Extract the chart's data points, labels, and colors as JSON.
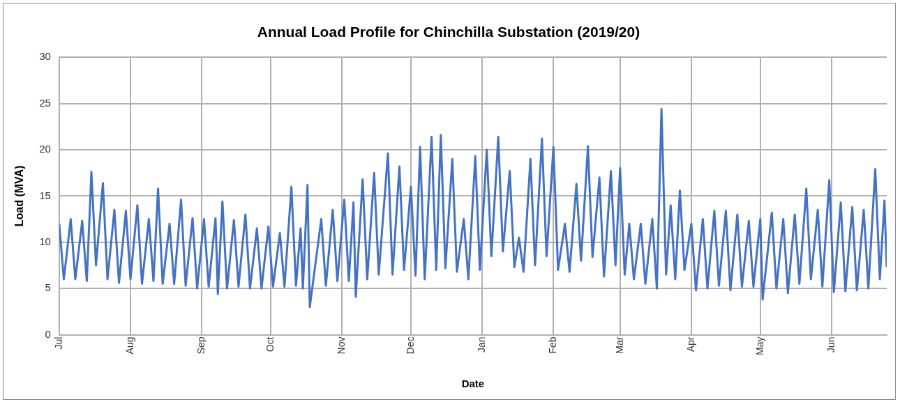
{
  "chart_data": {
    "type": "line",
    "title": "Annual Load Profile for Chinchilla Substation (2019/20)",
    "xlabel": "Date",
    "ylabel": "Load (MVA)",
    "x": [
      "2019-07-01",
      "2019-07-03",
      "2019-07-06",
      "2019-07-08",
      "2019-07-11",
      "2019-07-13",
      "2019-07-15",
      "2019-07-17",
      "2019-07-20",
      "2019-07-22",
      "2019-07-25",
      "2019-07-27",
      "2019-07-30",
      "2019-08-01",
      "2019-08-04",
      "2019-08-06",
      "2019-08-09",
      "2019-08-11",
      "2019-08-13",
      "2019-08-15",
      "2019-08-18",
      "2019-08-20",
      "2019-08-23",
      "2019-08-25",
      "2019-08-28",
      "2019-08-30",
      "2019-09-02",
      "2019-09-04",
      "2019-09-07",
      "2019-09-08",
      "2019-09-10",
      "2019-09-12",
      "2019-09-15",
      "2019-09-17",
      "2019-09-20",
      "2019-09-22",
      "2019-09-25",
      "2019-09-27",
      "2019-09-30",
      "2019-10-02",
      "2019-10-05",
      "2019-10-07",
      "2019-10-10",
      "2019-10-12",
      "2019-10-14",
      "2019-10-15",
      "2019-10-17",
      "2019-10-18",
      "2019-10-23",
      "2019-10-25",
      "2019-10-28",
      "2019-10-30",
      "2019-11-02",
      "2019-11-04",
      "2019-11-06",
      "2019-11-07",
      "2019-11-10",
      "2019-11-12",
      "2019-11-15",
      "2019-11-17",
      "2019-11-21",
      "2019-11-23",
      "2019-11-26",
      "2019-11-28",
      "2019-12-01",
      "2019-12-03",
      "2019-12-05",
      "2019-12-07",
      "2019-12-10",
      "2019-12-12",
      "2019-12-14",
      "2019-12-16",
      "2019-12-19",
      "2019-12-21",
      "2019-12-24",
      "2019-12-26",
      "2019-12-29",
      "2019-12-31",
      "2020-01-03",
      "2020-01-05",
      "2020-01-08",
      "2020-01-10",
      "2020-01-13",
      "2020-01-15",
      "2020-01-17",
      "2020-01-19",
      "2020-01-22",
      "2020-01-24",
      "2020-01-27",
      "2020-01-29",
      "2020-02-01",
      "2020-02-03",
      "2020-02-06",
      "2020-02-08",
      "2020-02-11",
      "2020-02-13",
      "2020-02-16",
      "2020-02-18",
      "2020-02-21",
      "2020-02-23",
      "2020-02-26",
      "2020-02-28",
      "2020-03-01",
      "2020-03-03",
      "2020-03-05",
      "2020-03-07",
      "2020-03-10",
      "2020-03-12",
      "2020-03-15",
      "2020-03-17",
      "2020-03-19",
      "2020-03-21",
      "2020-03-23",
      "2020-03-25",
      "2020-03-27",
      "2020-03-29",
      "2020-04-01",
      "2020-04-03",
      "2020-04-06",
      "2020-04-08",
      "2020-04-11",
      "2020-04-13",
      "2020-04-16",
      "2020-04-18",
      "2020-04-21",
      "2020-04-23",
      "2020-04-26",
      "2020-04-28",
      "2020-05-01",
      "2020-05-02",
      "2020-05-06",
      "2020-05-08",
      "2020-05-11",
      "2020-05-13",
      "2020-05-16",
      "2020-05-18",
      "2020-05-21",
      "2020-05-23",
      "2020-05-26",
      "2020-05-28",
      "2020-05-31",
      "2020-06-02",
      "2020-06-05",
      "2020-06-07",
      "2020-06-10",
      "2020-06-12",
      "2020-06-15",
      "2020-06-17",
      "2020-06-20",
      "2020-06-22",
      "2020-06-24",
      "2020-06-25"
    ],
    "series": [
      {
        "color": "#4472c4",
        "values": [
          12,
          6,
          12.5,
          6,
          12.3,
          5.8,
          17.6,
          7.5,
          16.4,
          6,
          13.5,
          5.6,
          13.4,
          6,
          14,
          5.5,
          12.5,
          5.8,
          15.8,
          5.5,
          12,
          5.5,
          14.6,
          5.3,
          12.6,
          5,
          12.5,
          5.2,
          12.6,
          4.4,
          14.4,
          5,
          12.4,
          5.2,
          13,
          5,
          11.5,
          5,
          11.7,
          5.2,
          11,
          5.2,
          16,
          5.3,
          11.5,
          5,
          16.2,
          3,
          12.5,
          5.3,
          13.5,
          5.8,
          14.6,
          5.8,
          14.3,
          4.1,
          16.8,
          6,
          17.5,
          6.5,
          19.6,
          6.5,
          18.2,
          7,
          16,
          6.4,
          20.3,
          6,
          21.4,
          7,
          21.6,
          7.2,
          19,
          6.8,
          12.5,
          6,
          19.3,
          7,
          20,
          8.5,
          21.4,
          9,
          17.7,
          7.3,
          10.5,
          6.8,
          19,
          7.5,
          21.2,
          8.5,
          20.3,
          7,
          12,
          6.8,
          16.3,
          8,
          20.4,
          8.4,
          17,
          6.3,
          17.7,
          7.5,
          18,
          6.5,
          12,
          6,
          12,
          5.5,
          12.5,
          5,
          24.4,
          6.5,
          14,
          6,
          15.6,
          7,
          12,
          4.8,
          12.5,
          5,
          13.4,
          5.3,
          13.4,
          4.8,
          13,
          5.2,
          12.3,
          5.2,
          12.5,
          3.8,
          13.2,
          5,
          12.5,
          4.5,
          13,
          5.5,
          15.8,
          6,
          13.5,
          5.2,
          16.7,
          4.6,
          14.3,
          4.7,
          13.8,
          4.8,
          13.5,
          5,
          17.9,
          6,
          14.5,
          7.3
        ]
      }
    ],
    "xlim": [
      "2019-07-01",
      "2020-06-25"
    ],
    "xticks": [
      {
        "value": "2019-07-01",
        "label": "Jul"
      },
      {
        "value": "2019-08-01",
        "label": "Aug"
      },
      {
        "value": "2019-09-01",
        "label": "Sep"
      },
      {
        "value": "2019-10-01",
        "label": "Oct"
      },
      {
        "value": "2019-11-01",
        "label": "Nov"
      },
      {
        "value": "2019-12-01",
        "label": "Dec"
      },
      {
        "value": "2020-01-01",
        "label": "Jan"
      },
      {
        "value": "2020-02-01",
        "label": "Feb"
      },
      {
        "value": "2020-03-01",
        "label": "Mar"
      },
      {
        "value": "2020-04-01",
        "label": "Apr"
      },
      {
        "value": "2020-05-01",
        "label": "May"
      },
      {
        "value": "2020-06-01",
        "label": "Jun"
      }
    ],
    "ylim": [
      0,
      30
    ],
    "yticks": [
      0,
      5,
      10,
      15,
      20,
      25,
      30
    ],
    "grid": true,
    "marker": "none",
    "line_style": "solid"
  }
}
